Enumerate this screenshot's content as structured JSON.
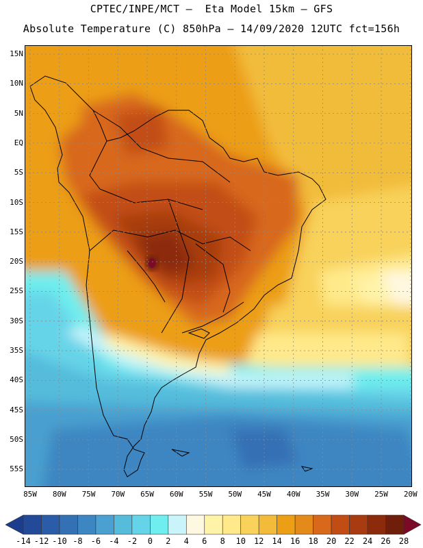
{
  "header": {
    "line1": "CPTEC/INPE/MCT –  Eta Model 15km – GFS",
    "line2": "Absolute Temperature (C) 850hPa – 14/09/2020 12UTC fct=156h"
  },
  "map": {
    "region": "South America",
    "variable": "Absolute Temperature (C) 850hPa",
    "lat_labels": [
      "15N",
      "10N",
      "5N",
      "EQ",
      "5S",
      "10S",
      "15S",
      "20S",
      "25S",
      "30S",
      "35S",
      "40S",
      "45S",
      "50S",
      "55S"
    ],
    "lon_labels": [
      "85W",
      "80W",
      "75W",
      "70W",
      "65W",
      "60W",
      "55W",
      "50W",
      "45W",
      "40W",
      "35W",
      "30W",
      "25W",
      "20W"
    ]
  },
  "colorbar": {
    "ticks": [
      "-14",
      "-12",
      "-10",
      "-8",
      "-6",
      "-4",
      "-2",
      "0",
      "2",
      "4",
      "6",
      "8",
      "10",
      "12",
      "14",
      "16",
      "18",
      "20",
      "22",
      "24",
      "26",
      "28"
    ],
    "colors": [
      "#1c3c8c",
      "#234a99",
      "#2a5ca8",
      "#3470b4",
      "#3c86c2",
      "#4aa0d0",
      "#55bcdc",
      "#66d4e8",
      "#6eeeee",
      "#c8f4fa",
      "#fff8e0",
      "#fff3a8",
      "#ffe98a",
      "#f8d25a",
      "#f2bc3a",
      "#ec9e14",
      "#e38a1a",
      "#d8681a",
      "#c24d14",
      "#a83c10",
      "#8c2a0c",
      "#6e1e0a",
      "#7a0a28"
    ]
  }
}
